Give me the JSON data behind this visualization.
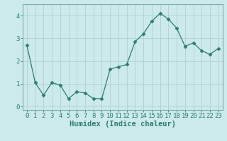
{
  "x": [
    0,
    1,
    2,
    3,
    4,
    5,
    6,
    7,
    8,
    9,
    10,
    11,
    12,
    13,
    14,
    15,
    16,
    17,
    18,
    19,
    20,
    21,
    22,
    23
  ],
  "y": [
    2.7,
    1.05,
    0.5,
    1.05,
    0.95,
    0.35,
    0.65,
    0.6,
    0.35,
    0.35,
    1.65,
    1.75,
    1.85,
    2.85,
    3.2,
    3.75,
    4.1,
    3.85,
    3.45,
    2.65,
    2.8,
    2.45,
    2.3,
    2.55
  ],
  "line_color": "#2e7d6e",
  "marker": "D",
  "marker_size": 2.5,
  "xlabel": "Humidex (Indice chaleur)",
  "ylim": [
    -0.15,
    4.5
  ],
  "xlim": [
    -0.5,
    23.5
  ],
  "bg_color": "#cceaea",
  "grid_color": "#b0d0d0",
  "xtick_labels": [
    "0",
    "1",
    "2",
    "3",
    "4",
    "5",
    "6",
    "7",
    "8",
    "9",
    "10",
    "11",
    "12",
    "13",
    "14",
    "15",
    "16",
    "17",
    "18",
    "19",
    "20",
    "21",
    "22",
    "23"
  ],
  "yticks": [
    0,
    1,
    2,
    3,
    4
  ],
  "xlabel_fontsize": 7.5,
  "tick_fontsize": 6.5,
  "tick_color": "#2e7d6e",
  "spine_color": "#7aadad"
}
